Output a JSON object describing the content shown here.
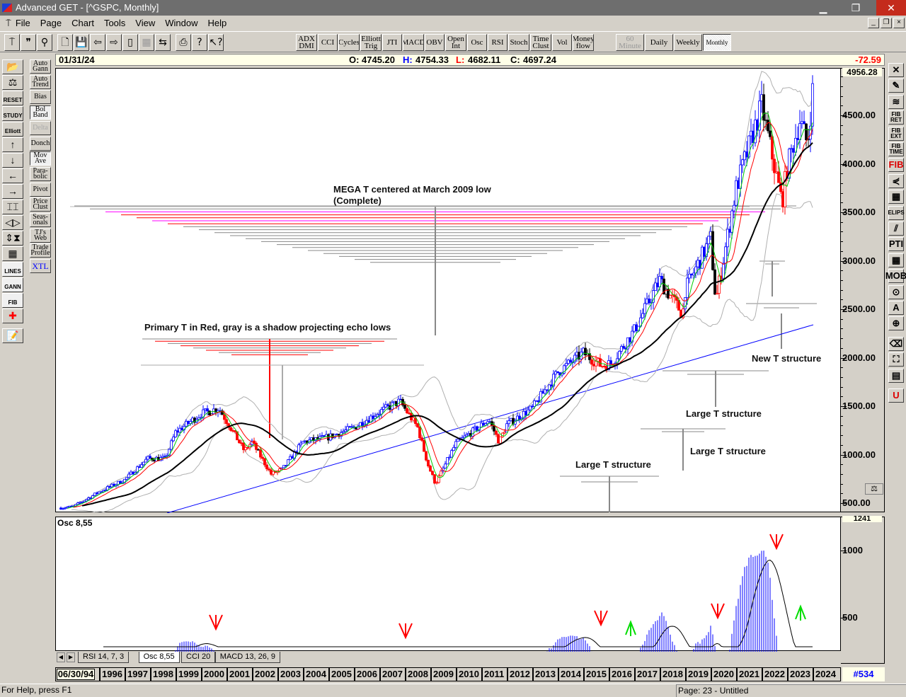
{
  "window": {
    "title": "Advanced GET - [^GSPC, Monthly]",
    "minimize": "▁",
    "restore": "❐",
    "close": "✕"
  },
  "menu": [
    "File",
    "Page",
    "Chart",
    "Tools",
    "View",
    "Window",
    "Help"
  ],
  "toolbar": {
    "icons": [
      "pin-icon",
      "quote-icon",
      "magnify-icon",
      "new-page-icon",
      "save-icon",
      "left-arrow-page-icon",
      "right-arrow-page-icon",
      "split-icon",
      "disabled-grid-icon",
      "exchange-icon",
      "print-icon",
      "help-icon",
      "context-help-icon"
    ],
    "studies": [
      "ADX\nDMI",
      "CCI",
      "Cycles",
      "Elliott\nTrig",
      "JTI",
      "MACD",
      "OBV",
      "Open\nInt",
      "Osc",
      "RSI",
      "Stoch",
      "Time\nClust",
      "Vol",
      "Money\nflow"
    ],
    "periods": [
      {
        "label": "60\nMinute",
        "disabled": true
      },
      {
        "label": "Daily"
      },
      {
        "label": "Weekly"
      },
      {
        "label": "Monthly",
        "active": true
      }
    ]
  },
  "left_tools": [
    "open-folder-icon",
    "balance-icon",
    "RESET",
    "STUDY",
    "Elliott",
    "↑",
    "↓",
    "←",
    "→",
    "bars-icon",
    "lr-arrows-icon",
    "ud-arrows-icon",
    "dots-grid-icon",
    "LINES",
    "GANN",
    "FIB",
    "crosshair-icon",
    "notes-icon"
  ],
  "left_studies": [
    {
      "label": "Auto\nGann"
    },
    {
      "label": "Auto\nTrend"
    },
    {
      "label": "Bias"
    },
    {
      "label": "Bol\nBand",
      "active": true
    },
    {
      "label": "Delta",
      "disabled": true
    },
    {
      "label": "Donch"
    },
    {
      "label": "Mov\nAve",
      "active": true
    },
    {
      "label": "Para-\nbolic"
    },
    {
      "label": "Pivot"
    },
    {
      "label": "Price\nClust"
    },
    {
      "label": "Seas-\nonals"
    },
    {
      "label": "TJ's\nWeb"
    },
    {
      "label": "Trade\nProfile"
    },
    {
      "label": "XTL"
    }
  ],
  "right_tools": [
    "✕",
    "pencil-icon",
    "lines-icon",
    "FIB\nRET",
    "FIB\nEXT",
    "FIB\nTIME",
    "FIB",
    "fan-icon",
    "grid-icon",
    "ELIPS",
    "channel-icon",
    "PTI",
    "table-icon",
    "MOB",
    "find-icon",
    "A",
    "zoom-icon",
    "eraser-icon",
    "fit-icon",
    "pages-icon",
    "U"
  ],
  "info": {
    "date": "01/31/24",
    "open_label": "O:",
    "open": "4745.20",
    "high_label": "H:",
    "high": "4754.33",
    "low_label": "L:",
    "low": "4682.11",
    "close_label": "C:",
    "close": "4697.24",
    "change": "-72.59"
  },
  "price_axis": {
    "top": "4956.28",
    "ticks": [
      "4500.00",
      "4000.00",
      "3500.00",
      "3000.00",
      "2500.00",
      "2000.00",
      "1500.00",
      "1000.00",
      "500.00"
    ]
  },
  "osc": {
    "title": "Osc 8,55",
    "top": "1241",
    "ticks": [
      "1000",
      "500"
    ]
  },
  "annotations": {
    "mega": "MEGA T centered at March 2009 low",
    "mega2": "(Complete)",
    "primary": "Primary T in Red, gray is a shadow projecting echo lows",
    "new_t": "New T structure",
    "large1": "Large T structure",
    "large2": "Large T structure",
    "large3": "Large T structure"
  },
  "tabs": [
    "RSI 14, 7, 3",
    "Osc 8,55",
    "CCI 20",
    "MACD 13, 26, 9"
  ],
  "years": {
    "start": "06/30/94",
    "labels": [
      "1996",
      "1997",
      "1998",
      "1999",
      "2000",
      "2001",
      "2002",
      "2003",
      "2004",
      "2005",
      "2006",
      "2007",
      "2008",
      "2009",
      "2010",
      "2011",
      "2012",
      "2013",
      "2014",
      "2015",
      "2016",
      "2017",
      "2018",
      "2019",
      "2020",
      "2021",
      "2022",
      "2023",
      "2024"
    ],
    "bar_count": "#534"
  },
  "status": {
    "help": "For Help, press F1",
    "page": "Page: 23 - Untitled"
  },
  "colors": {
    "up": "#0000ff",
    "down": "#ff0000",
    "neutral": "#000000",
    "ma_fast": "#00cc00",
    "ma_mid": "#ff0000",
    "ma_slow": "#000000",
    "trend": "#0000ff",
    "band": "#b0b0b0",
    "infobar": "#ffffe8"
  },
  "chart_data": {
    "type": "candlestick",
    "symbol": "^GSPC",
    "interval": "Monthly",
    "ylim": [
      450,
      4956.28
    ],
    "keypoints": [
      [
        1994.5,
        450
      ],
      [
        1995.0,
        465
      ],
      [
        1996.0,
        615
      ],
      [
        1997.0,
        740
      ],
      [
        1997.9,
        960
      ],
      [
        1998.6,
        960
      ],
      [
        1999.0,
        1230
      ],
      [
        2000.0,
        1420
      ],
      [
        2000.7,
        1480
      ],
      [
        2001.7,
        1040
      ],
      [
        2002.0,
        1130
      ],
      [
        2002.75,
        800
      ],
      [
        2003.2,
        850
      ],
      [
        2004.0,
        1130
      ],
      [
        2005.0,
        1180
      ],
      [
        2006.0,
        1280
      ],
      [
        2007.0,
        1440
      ],
      [
        2007.8,
        1550
      ],
      [
        2008.5,
        1280
      ],
      [
        2008.9,
        900
      ],
      [
        2009.2,
        700
      ],
      [
        2010.0,
        1115
      ],
      [
        2011.3,
        1360
      ],
      [
        2011.7,
        1130
      ],
      [
        2012.0,
        1310
      ],
      [
        2013.0,
        1480
      ],
      [
        2014.0,
        1850
      ],
      [
        2015.0,
        2050
      ],
      [
        2015.7,
        1920
      ],
      [
        2016.1,
        1940
      ],
      [
        2017.0,
        2280
      ],
      [
        2018.0,
        2800
      ],
      [
        2018.9,
        2450
      ],
      [
        2019.0,
        2700
      ],
      [
        2020.0,
        3230
      ],
      [
        2020.2,
        2580
      ],
      [
        2021.0,
        3750
      ],
      [
        2022.0,
        4600
      ],
      [
        2022.8,
        3600
      ],
      [
        2023.0,
        3960
      ],
      [
        2023.5,
        4450
      ],
      [
        2023.8,
        4200
      ],
      [
        2024.0,
        4750
      ]
    ],
    "osc_ylim": [
      247,
      1241
    ]
  }
}
